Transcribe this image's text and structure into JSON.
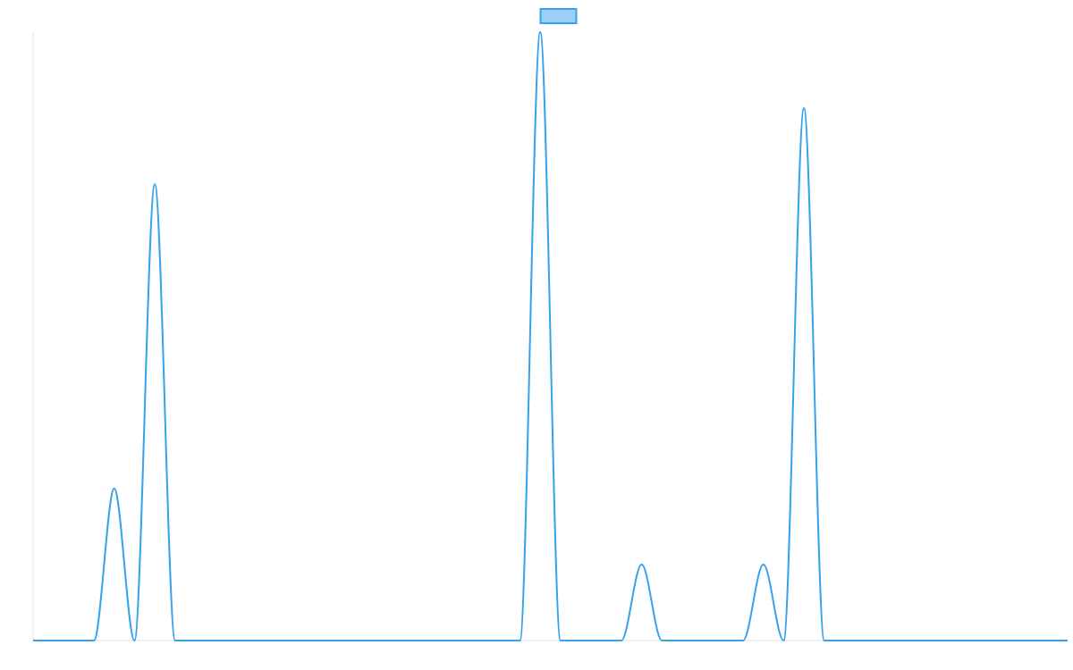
{
  "chart_data": {
    "type": "line",
    "title": "",
    "xlabel": "",
    "ylabel": "",
    "x_range": [
      0,
      51
    ],
    "ylim": [
      0,
      8
    ],
    "grid": false,
    "legend": {
      "placement": "top-center",
      "entries": [
        {
          "name": "",
          "color": "#36a2eb"
        }
      ]
    },
    "series": [
      {
        "name": "",
        "color": "#36a2eb",
        "fill": "#9ad0f5",
        "smooth": true,
        "x": [
          0,
          1,
          2,
          3,
          4,
          5,
          6,
          7,
          8,
          9,
          10,
          11,
          12,
          13,
          14,
          15,
          16,
          17,
          18,
          19,
          20,
          21,
          22,
          23,
          24,
          25,
          26,
          27,
          28,
          29,
          30,
          31,
          32,
          33,
          34,
          35,
          36,
          37,
          38,
          39,
          40,
          41,
          42,
          43,
          44,
          45,
          46,
          47,
          48,
          49,
          50,
          51
        ],
        "values": [
          0,
          0,
          0,
          0,
          2,
          0,
          6,
          0,
          0,
          0,
          0,
          0,
          0,
          0,
          0,
          0,
          0,
          0,
          0,
          0,
          0,
          0,
          0,
          0,
          0,
          8,
          0,
          0,
          0,
          0,
          1,
          0,
          0,
          0,
          0,
          0,
          1,
          0,
          7,
          0,
          0,
          0,
          0,
          0,
          0,
          0,
          0,
          0,
          0,
          0,
          0,
          0
        ]
      }
    ]
  }
}
